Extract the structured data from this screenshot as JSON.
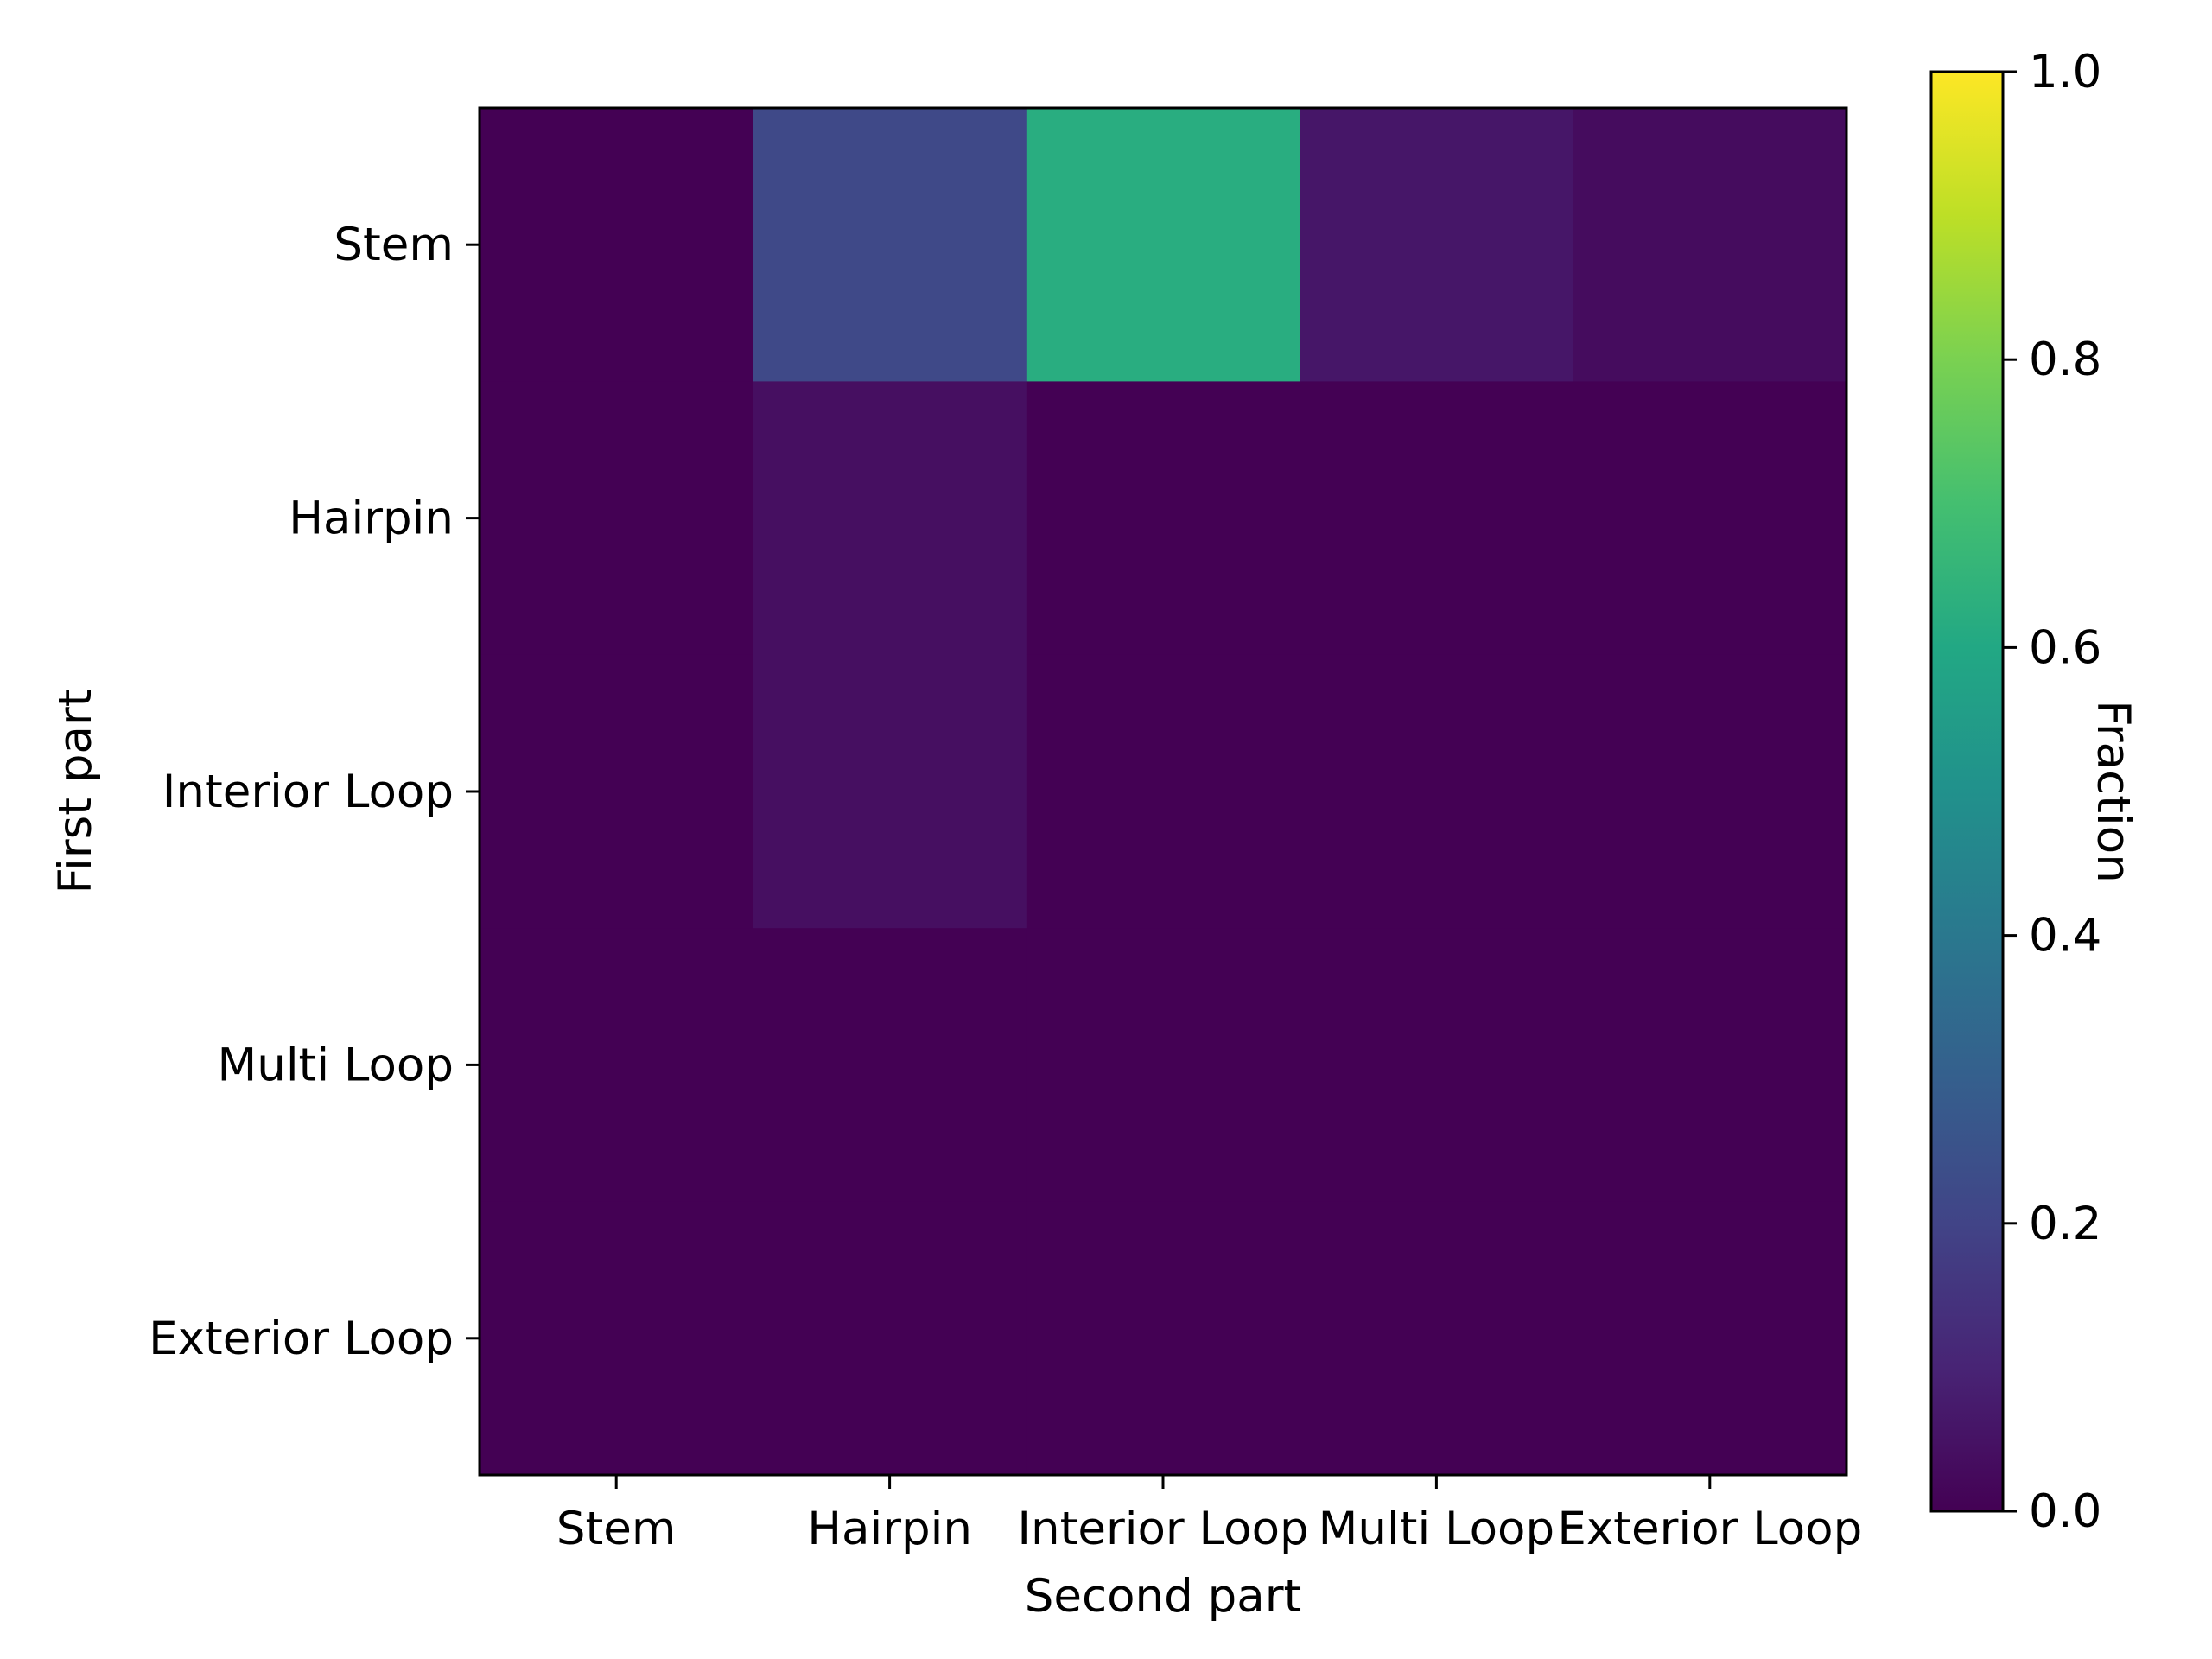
{
  "chart_data": {
    "type": "heatmap",
    "xlabel": "Second part",
    "ylabel": "First part",
    "x_categories": [
      "Stem",
      "Hairpin",
      "Interior Loop",
      "Multi Loop",
      "Exterior Loop"
    ],
    "y_categories": [
      "Stem",
      "Hairpin",
      "Interior Loop",
      "Multi Loop",
      "Exterior Loop"
    ],
    "values": [
      [
        0.0,
        0.22,
        0.62,
        0.06,
        0.03
      ],
      [
        0.0,
        0.04,
        0.0,
        0.0,
        0.0
      ],
      [
        0.0,
        0.04,
        0.0,
        0.0,
        0.0
      ],
      [
        0.0,
        0.0,
        0.0,
        0.0,
        0.0
      ],
      [
        0.0,
        0.0,
        0.0,
        0.0,
        0.0
      ]
    ],
    "colormap": "viridis",
    "colorbar": {
      "label": "Fraction",
      "range": [
        0.0,
        1.0
      ],
      "ticks": [
        0.0,
        0.2,
        0.4,
        0.6,
        0.8,
        1.0
      ],
      "tick_labels": [
        "0.0",
        "0.2",
        "0.4",
        "0.6",
        "0.8",
        "1.0"
      ]
    }
  }
}
